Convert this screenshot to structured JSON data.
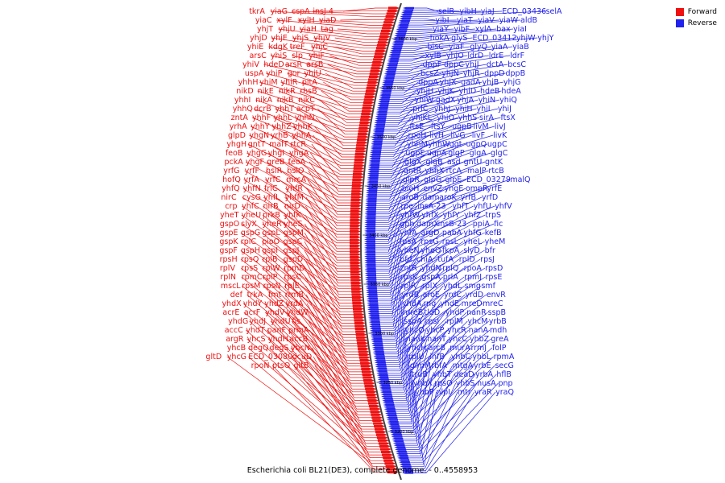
{
  "caption": "Escherichia coli BL21(DE3), complete genome. - 0..4558953",
  "legend": {
    "items": [
      {
        "label": "Forward",
        "color": "#ee1111"
      },
      {
        "label": "Reverse",
        "color": "#2222ee"
      }
    ]
  },
  "colors": {
    "forward": "#ee1111",
    "reverse": "#2222ee",
    "backbone": "#444444"
  },
  "ticks": [
    "3600 kbp",
    "3550 kbp",
    "3500 kbp",
    "3450 kbp",
    "3400 kbp",
    "3350 kbp",
    "3300 kbp",
    "3250 kbp",
    "3200 kbp"
  ],
  "genes": {
    "forward": [
      "insJ-4",
      "cspA",
      "yiaG",
      "tkrA",
      "yiaD",
      "xylH",
      "xylF",
      "yiaC",
      "tag",
      "yiaH",
      "yhjU",
      "yhjT",
      "yhjV",
      "yhjS",
      "yhjE",
      "yhjD",
      "yhjC",
      "treF",
      "kdgK",
      "yhiE",
      "yhiF",
      "slp",
      "yhiS",
      "arsC",
      "arsB",
      "arsR",
      "hdeD",
      "yhiV",
      "yhiU",
      "gor",
      "yhiP",
      "uspA",
      "pitA",
      "yhiR",
      "yhiM",
      "yhhH",
      "rhsB",
      "nikR",
      "nikE",
      "nikD",
      "nikC",
      "nikB",
      "nikA",
      "yhhI",
      "acpT",
      "yhhT",
      "dcrB",
      "yhhQ",
      "yhhN",
      "yhhL",
      "yhhF",
      "zntA",
      "yhhK",
      "yhhZ",
      "yhhY",
      "yrhA",
      "yhhA",
      "yrhB",
      "yhgN",
      "glpD",
      "rtcR",
      "malT",
      "gntT",
      "yhgH",
      "yhgA",
      "yhgI",
      "yhgG",
      "feoB",
      "feoA",
      "greB",
      "yhgF",
      "pckA",
      "hslO",
      "hslR",
      "yrfF",
      "yrfG",
      "mrcA",
      "yrfC",
      "yrfA",
      "hofQ",
      "yhfR",
      "frlC",
      "yhfN",
      "yhfQ",
      "yhfM",
      "yhfL",
      "cysG",
      "nirC",
      "nirD",
      "nirB",
      "yhfC",
      "crp",
      "yhfK",
      "prkB",
      "yheU",
      "yheT",
      "yheS",
      "yheR",
      "slyX",
      "gspO",
      "gspM",
      "gspL",
      "gspG",
      "gspE",
      "gspC",
      "pioO",
      "rplC",
      "gspK",
      "gspJ",
      "gspI",
      "gspH",
      "gspF",
      "gspD",
      "rplB",
      "rpsQ",
      "rpsH",
      "rpmD",
      "rplW",
      "rpsS",
      "rplV",
      "rpsC",
      "rplP",
      "rpmC",
      "rplN",
      "rplE",
      "rpsN",
      "rpsM",
      "mscL",
      "rrmB",
      "fmt",
      "trkA",
      "def",
      "yrdA",
      "yhdZ",
      "yhdY",
      "yhdX",
      "yhdW",
      "yhdV",
      "acrF",
      "acrE",
      "fis",
      "yhdU",
      "yhdJ",
      "yhdG",
      "prmA",
      "panF",
      "yhdT",
      "accC",
      "accB",
      "yhdH",
      "yhcS",
      "argR",
      "yhcN",
      "degS",
      "degQ",
      "yhcB",
      "dcuD",
      "ECD_03080",
      "yhcG",
      "gltD",
      "gltB",
      "ptsO",
      "rpoN"
    ],
    "reverse": [
      "selB",
      "yibH",
      "yiaJ",
      "ECD_03436",
      "selA",
      "yibI",
      "yiaT",
      "yiaV",
      "yiaW",
      "aldB",
      "yiaY",
      "yibF",
      "xylA",
      "bax",
      "yiaI",
      "hokA",
      "glyS",
      "ECD_03412",
      "yhjW",
      "yhjY",
      "bisC",
      "yiaF",
      "glyQ",
      "yiaA",
      "yiaB",
      "xylB",
      "yhjO",
      "ldrD",
      "ldrE",
      "ldrF",
      "dppF",
      "dppC",
      "yhjJ",
      "dctA",
      "bcsC",
      "bcsZ",
      "yhjN",
      "yhjR",
      "dppD",
      "dppB",
      "dppA",
      "yhjX",
      "gadA",
      "yhjB",
      "yhjG",
      "yhjH",
      "yhjK",
      "yhiD",
      "hdeB",
      "hdeA",
      "yhiW",
      "gadX",
      "yhjA",
      "yhiN",
      "yhiQ",
      "prlC",
      "yhhJ",
      "yhiH",
      "yhiI",
      "yhiJ",
      "yhiKL",
      "yhiO",
      "yhhS",
      "sirA",
      "ftsX",
      "ftsE",
      "ftsY",
      "ugpB",
      "livM",
      "livJ",
      "rpoH",
      "livH",
      "livG",
      "livF",
      "livK",
      "yhhM",
      "yhhW",
      "ggt",
      "ugpQ",
      "ugpC",
      "ugpE",
      "ugpA",
      "glgP",
      "glgA",
      "glgC",
      "glgX",
      "glgB",
      "asd",
      "gntU",
      "gntK",
      "gntR",
      "yhhX",
      "rtcA",
      "malP",
      "rtcB",
      "glpR",
      "glpG",
      "glpE",
      "ECD_03279",
      "malQ",
      "bioH",
      "envZ",
      "yhgE",
      "ompR",
      "yrfE",
      "aroB",
      "dam",
      "aroK",
      "yrfB",
      "yrfD",
      "rpe",
      "insA-23",
      "yhfT",
      "yhfU",
      "yhfV",
      "yhfW",
      "yhfX",
      "yhfY",
      "yhfZ",
      "trpS",
      "gph",
      "damX",
      "insB-23",
      "ppiA",
      "fic",
      "yhfA",
      "argD",
      "pabA",
      "yhfG",
      "kefB",
      "fusA",
      "rpsG",
      "rpsL",
      "yheL",
      "yheM",
      "yheN",
      "yheO",
      "fkpA",
      "slyD",
      "bfr",
      "bfd",
      "chiA",
      "tufA",
      "rplD",
      "rpsJ",
      "zntR",
      "yhdN",
      "rplQ",
      "rpoA",
      "rpsD",
      "rpsK",
      "gspA",
      "prlA",
      "rpmJ",
      "rpsE",
      "rplR",
      "rplX",
      "yhdL",
      "smg",
      "smf",
      "yrdB",
      "aroE",
      "yrdC",
      "yrdD",
      "envR",
      "yhdA",
      "rng",
      "yhdE",
      "mreD",
      "mreC",
      "mreB",
      "tldD",
      "yhdP",
      "nanR",
      "sspB",
      "sspA",
      "rpsI",
      "rplM",
      "yhcM",
      "yrbB",
      "yhcO",
      "yhcP",
      "yhcR",
      "nanA",
      "mdh",
      "nanK",
      "nanT",
      "yhcC",
      "yhbZ",
      "greA",
      "yhcH",
      "arcB",
      "murA",
      "rrmJ",
      "folP",
      "rplU",
      "infB",
      "yhbC",
      "yhbL",
      "rpmA",
      "glmM",
      "rbfA",
      "mtgA",
      "yrbE",
      "secG",
      "truB",
      "yhbT",
      "deaD",
      "yrbA",
      "hflB",
      "yhbX",
      "rpsO",
      "yhbS",
      "nusA",
      "pnp",
      "yhbP",
      "nlpI",
      "mtr",
      "yraR",
      "yraQ"
    ]
  }
}
